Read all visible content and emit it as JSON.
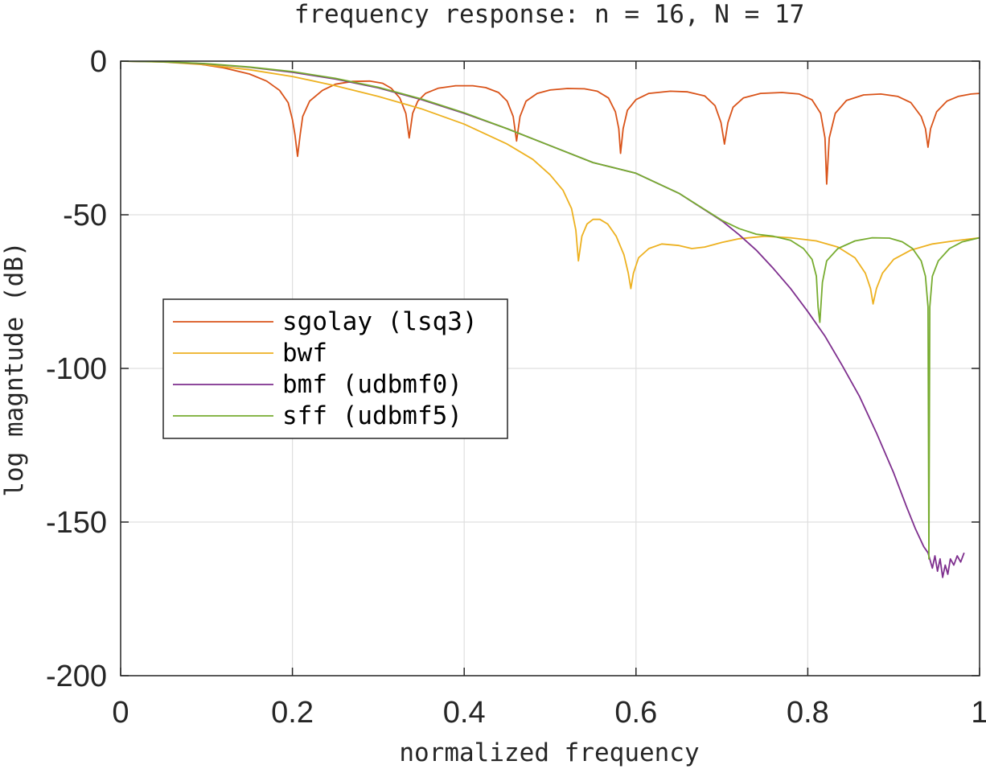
{
  "chart_data": {
    "type": "line",
    "title": "frequency response: n = 16, N = 17",
    "xlabel": "normalized frequency",
    "ylabel": "log magntude (dB)",
    "xlim": [
      0,
      1
    ],
    "ylim": [
      -200,
      0
    ],
    "xticks": [
      0,
      0.2,
      0.4,
      0.6,
      0.8,
      1
    ],
    "xtick_labels": [
      "0",
      "0.2",
      "0.4",
      "0.6",
      "0.8",
      "1"
    ],
    "yticks": [
      0,
      -50,
      -100,
      -150,
      -200
    ],
    "ytick_labels": [
      "0",
      "-50",
      "-100",
      "-150",
      "-200"
    ],
    "grid": true,
    "legend_position": "left-center",
    "series": [
      {
        "name": "sgolay (lsq3)",
        "color": "#D95319",
        "points": [
          [
            0,
            0
          ],
          [
            0.03,
            0
          ],
          [
            0.06,
            -0.3
          ],
          [
            0.09,
            -0.9
          ],
          [
            0.12,
            -2.2
          ],
          [
            0.15,
            -4.2
          ],
          [
            0.17,
            -6.5
          ],
          [
            0.185,
            -9.5
          ],
          [
            0.195,
            -13.5
          ],
          [
            0.2,
            -19
          ],
          [
            0.203,
            -24
          ],
          [
            0.206,
            -31
          ],
          [
            0.209,
            -24
          ],
          [
            0.212,
            -18
          ],
          [
            0.22,
            -13
          ],
          [
            0.235,
            -9.5
          ],
          [
            0.25,
            -7.5
          ],
          [
            0.27,
            -6.6
          ],
          [
            0.29,
            -6.5
          ],
          [
            0.305,
            -7.2
          ],
          [
            0.315,
            -8.8
          ],
          [
            0.325,
            -12
          ],
          [
            0.332,
            -17
          ],
          [
            0.336,
            -25
          ],
          [
            0.34,
            -17
          ],
          [
            0.346,
            -13
          ],
          [
            0.355,
            -10.5
          ],
          [
            0.37,
            -8.8
          ],
          [
            0.39,
            -8
          ],
          [
            0.41,
            -8
          ],
          [
            0.425,
            -8.6
          ],
          [
            0.44,
            -10.2
          ],
          [
            0.45,
            -13
          ],
          [
            0.457,
            -18
          ],
          [
            0.461,
            -26
          ],
          [
            0.465,
            -18
          ],
          [
            0.472,
            -13
          ],
          [
            0.485,
            -10.5
          ],
          [
            0.5,
            -9.4
          ],
          [
            0.52,
            -8.9
          ],
          [
            0.54,
            -9
          ],
          [
            0.555,
            -9.8
          ],
          [
            0.568,
            -12
          ],
          [
            0.576,
            -16.5
          ],
          [
            0.58,
            -22
          ],
          [
            0.582,
            -30
          ],
          [
            0.585,
            -22
          ],
          [
            0.59,
            -16
          ],
          [
            0.6,
            -12.5
          ],
          [
            0.615,
            -10.5
          ],
          [
            0.64,
            -9.8
          ],
          [
            0.66,
            -10
          ],
          [
            0.68,
            -11.3
          ],
          [
            0.692,
            -14.5
          ],
          [
            0.699,
            -20
          ],
          [
            0.703,
            -27
          ],
          [
            0.707,
            -20
          ],
          [
            0.713,
            -15
          ],
          [
            0.725,
            -12
          ],
          [
            0.745,
            -10.5
          ],
          [
            0.77,
            -10.2
          ],
          [
            0.79,
            -10.7
          ],
          [
            0.805,
            -12.6
          ],
          [
            0.815,
            -17
          ],
          [
            0.82,
            -25
          ],
          [
            0.822,
            -40
          ],
          [
            0.825,
            -25
          ],
          [
            0.832,
            -17
          ],
          [
            0.845,
            -12.8
          ],
          [
            0.865,
            -11
          ],
          [
            0.885,
            -10.7
          ],
          [
            0.905,
            -11.5
          ],
          [
            0.92,
            -13.5
          ],
          [
            0.932,
            -18
          ],
          [
            0.937,
            -22
          ],
          [
            0.94,
            -28
          ],
          [
            0.943,
            -22
          ],
          [
            0.95,
            -16.5
          ],
          [
            0.962,
            -13
          ],
          [
            0.975,
            -11.5
          ],
          [
            0.99,
            -10.7
          ],
          [
            1,
            -10.5
          ]
        ]
      },
      {
        "name": "bwf",
        "color": "#EDB120",
        "points": [
          [
            0,
            0
          ],
          [
            0.05,
            -0.3
          ],
          [
            0.1,
            -1.2
          ],
          [
            0.15,
            -2.8
          ],
          [
            0.2,
            -5
          ],
          [
            0.25,
            -8
          ],
          [
            0.3,
            -11.5
          ],
          [
            0.35,
            -15.5
          ],
          [
            0.4,
            -20.5
          ],
          [
            0.45,
            -27
          ],
          [
            0.48,
            -32
          ],
          [
            0.5,
            -37
          ],
          [
            0.515,
            -42
          ],
          [
            0.525,
            -48
          ],
          [
            0.53,
            -55
          ],
          [
            0.533,
            -65
          ],
          [
            0.537,
            -57
          ],
          [
            0.543,
            -53
          ],
          [
            0.55,
            -51.5
          ],
          [
            0.558,
            -51.5
          ],
          [
            0.567,
            -53
          ],
          [
            0.577,
            -57
          ],
          [
            0.586,
            -63
          ],
          [
            0.591,
            -69
          ],
          [
            0.594,
            -74
          ],
          [
            0.597,
            -69
          ],
          [
            0.603,
            -64
          ],
          [
            0.615,
            -61
          ],
          [
            0.63,
            -59.5
          ],
          [
            0.65,
            -60
          ],
          [
            0.665,
            -61
          ],
          [
            0.68,
            -60.5
          ],
          [
            0.7,
            -59
          ],
          [
            0.72,
            -57.8
          ],
          [
            0.75,
            -57
          ],
          [
            0.78,
            -57.5
          ],
          [
            0.81,
            -58.5
          ],
          [
            0.835,
            -60.5
          ],
          [
            0.855,
            -64
          ],
          [
            0.867,
            -69
          ],
          [
            0.873,
            -74
          ],
          [
            0.876,
            -79
          ],
          [
            0.88,
            -74
          ],
          [
            0.887,
            -69
          ],
          [
            0.9,
            -64.5
          ],
          [
            0.92,
            -61.5
          ],
          [
            0.945,
            -59.5
          ],
          [
            0.97,
            -58.5
          ],
          [
            1,
            -57.5
          ]
        ]
      },
      {
        "name": "bmf (udbmf0)",
        "color": "#7E2F8E",
        "points": [
          [
            0,
            0
          ],
          [
            0.05,
            -0.2
          ],
          [
            0.1,
            -0.9
          ],
          [
            0.15,
            -2
          ],
          [
            0.2,
            -3.6
          ],
          [
            0.25,
            -5.8
          ],
          [
            0.3,
            -8.7
          ],
          [
            0.35,
            -12.5
          ],
          [
            0.4,
            -17
          ],
          [
            0.45,
            -22
          ],
          [
            0.5,
            -27.5
          ],
          [
            0.55,
            -33
          ],
          [
            0.6,
            -36.5
          ],
          [
            0.65,
            -43
          ],
          [
            0.7,
            -52
          ],
          [
            0.72,
            -56.5
          ],
          [
            0.74,
            -61.5
          ],
          [
            0.76,
            -67.5
          ],
          [
            0.78,
            -74
          ],
          [
            0.8,
            -81.5
          ],
          [
            0.82,
            -89.5
          ],
          [
            0.84,
            -99
          ],
          [
            0.86,
            -109
          ],
          [
            0.88,
            -121
          ],
          [
            0.9,
            -134
          ],
          [
            0.915,
            -145
          ],
          [
            0.925,
            -152
          ],
          [
            0.935,
            -158
          ],
          [
            0.94,
            -160
          ],
          [
            0.945,
            -165
          ],
          [
            0.948,
            -161
          ],
          [
            0.951,
            -166
          ],
          [
            0.954,
            -162
          ],
          [
            0.957,
            -168
          ],
          [
            0.96,
            -164
          ],
          [
            0.963,
            -167
          ],
          [
            0.966,
            -162
          ],
          [
            0.97,
            -164
          ],
          [
            0.974,
            -161
          ],
          [
            0.978,
            -163
          ],
          [
            0.982,
            -160
          ]
        ]
      },
      {
        "name": "sff (udbmf5)",
        "color": "#77AC30",
        "points": [
          [
            0,
            0
          ],
          [
            0.05,
            -0.2
          ],
          [
            0.1,
            -0.8
          ],
          [
            0.15,
            -1.9
          ],
          [
            0.2,
            -3.4
          ],
          [
            0.25,
            -5.6
          ],
          [
            0.3,
            -8.5
          ],
          [
            0.35,
            -12.3
          ],
          [
            0.4,
            -16.8
          ],
          [
            0.45,
            -22
          ],
          [
            0.5,
            -27.5
          ],
          [
            0.55,
            -33
          ],
          [
            0.6,
            -36.5
          ],
          [
            0.65,
            -43
          ],
          [
            0.7,
            -51.8
          ],
          [
            0.72,
            -54.5
          ],
          [
            0.74,
            -56.3
          ],
          [
            0.76,
            -57
          ],
          [
            0.78,
            -58.3
          ],
          [
            0.795,
            -61
          ],
          [
            0.805,
            -64.5
          ],
          [
            0.81,
            -70
          ],
          [
            0.812,
            -80
          ],
          [
            0.814,
            -85
          ],
          [
            0.817,
            -72
          ],
          [
            0.822,
            -65
          ],
          [
            0.835,
            -61
          ],
          [
            0.855,
            -58.5
          ],
          [
            0.875,
            -57.5
          ],
          [
            0.895,
            -57.6
          ],
          [
            0.91,
            -58.8
          ],
          [
            0.922,
            -61
          ],
          [
            0.932,
            -65
          ],
          [
            0.937,
            -70
          ],
          [
            0.94,
            -80
          ],
          [
            0.941,
            -162
          ],
          [
            0.942,
            -80
          ],
          [
            0.945,
            -70
          ],
          [
            0.952,
            -65
          ],
          [
            0.965,
            -61
          ],
          [
            0.98,
            -58.8
          ],
          [
            1,
            -57.5
          ]
        ]
      }
    ]
  }
}
